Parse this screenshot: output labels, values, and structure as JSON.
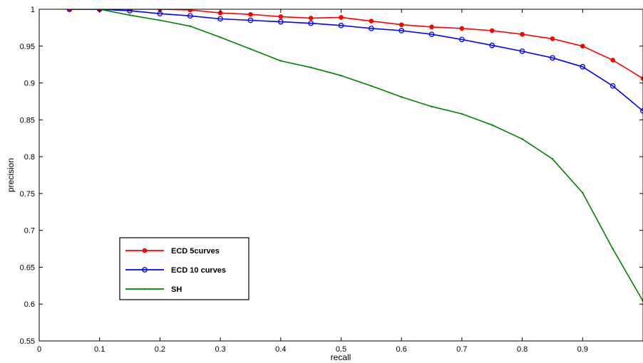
{
  "chart_data": {
    "type": "line",
    "title": "",
    "xlabel": "recall",
    "ylabel": "precision",
    "xlim": [
      0,
      1
    ],
    "ylim": [
      0.55,
      1
    ],
    "xticks": [
      0,
      0.1,
      0.2,
      0.3,
      0.4,
      0.5,
      0.6,
      0.7,
      0.8,
      0.9
    ],
    "xtick_labels": [
      "0",
      "0.1",
      "0.2",
      "0.3",
      "0.4",
      "0.5",
      "0.6",
      "0.7",
      "0.8",
      "0.9"
    ],
    "yticks": [
      0.55,
      0.6,
      0.65,
      0.7,
      0.75,
      0.8,
      0.85,
      0.9,
      0.95,
      1
    ],
    "ytick_labels": [
      "0.55",
      "0.6",
      "0.65",
      "0.7",
      "0.75",
      "0.8",
      "0.85",
      "0.9",
      "0.95",
      "1"
    ],
    "grid": false,
    "legend_position": "lower-left",
    "x": [
      0.05,
      0.1,
      0.15,
      0.2,
      0.25,
      0.3,
      0.35,
      0.4,
      0.45,
      0.5,
      0.55,
      0.6,
      0.65,
      0.7,
      0.75,
      0.8,
      0.85,
      0.9,
      0.95,
      1.0
    ],
    "series": [
      {
        "name": "ECD 5curves",
        "color": "#ff0000",
        "marker": "filled-circle",
        "values": [
          1.0,
          1.0,
          1.0,
          1.0,
          0.999,
          0.995,
          0.993,
          0.99,
          0.988,
          0.989,
          0.984,
          0.979,
          0.976,
          0.974,
          0.971,
          0.966,
          0.96,
          0.95,
          0.931,
          0.906
        ]
      },
      {
        "name": "ECD 10 curves",
        "color": "#0000ff",
        "marker": "open-circle",
        "values": [
          1.0,
          1.0,
          0.998,
          0.994,
          0.991,
          0.987,
          0.985,
          0.983,
          0.981,
          0.978,
          0.974,
          0.971,
          0.966,
          0.959,
          0.951,
          0.943,
          0.934,
          0.922,
          0.896,
          0.862
        ]
      },
      {
        "name": "SH",
        "color": "#008000",
        "marker": "dot",
        "values": [
          1.0,
          1.0,
          0.992,
          0.985,
          0.977,
          0.962,
          0.946,
          0.93,
          0.921,
          0.91,
          0.896,
          0.881,
          0.868,
          0.858,
          0.843,
          0.824,
          0.797,
          0.751,
          0.675,
          0.604
        ]
      }
    ]
  }
}
